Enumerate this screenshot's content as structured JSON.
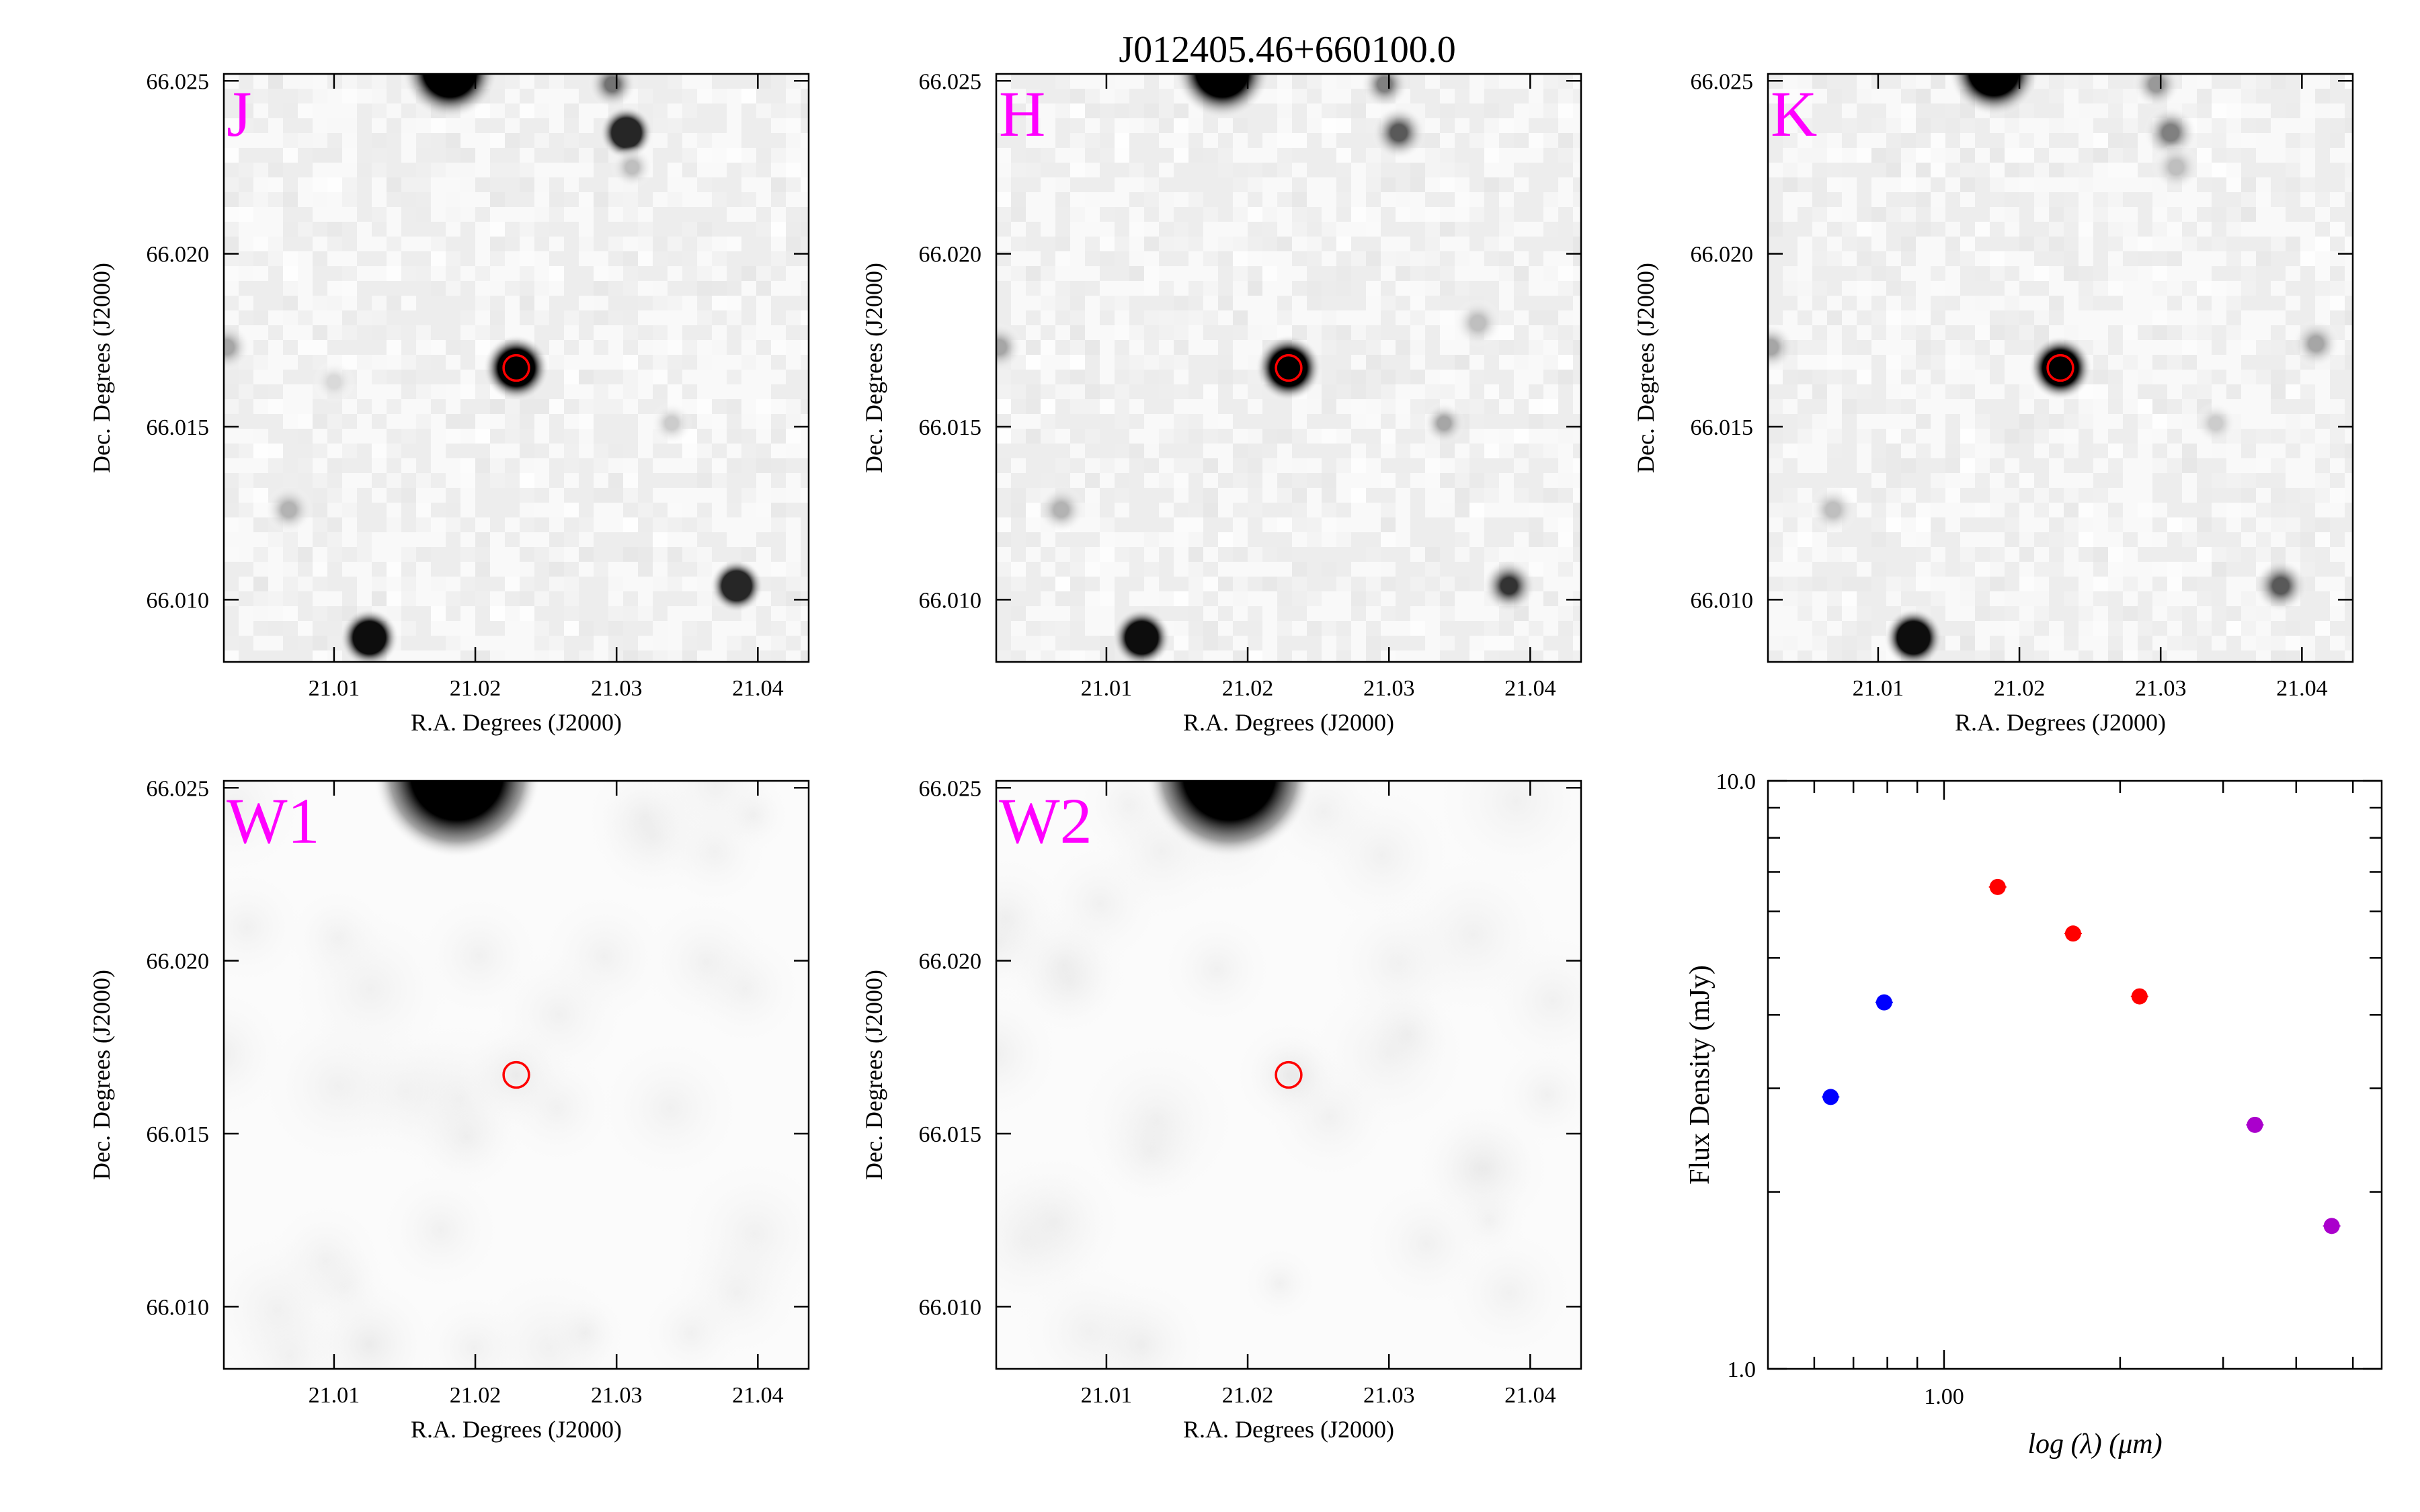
{
  "figure": {
    "title": "J012405.46+660100.0"
  },
  "panels": [
    {
      "band": "J",
      "style": "nir",
      "stars": [
        {
          "ra": 21.0182,
          "dec": 66.0253,
          "strength": 1.0,
          "size": 0.9
        },
        {
          "ra": 21.0297,
          "dec": 66.0249,
          "strength": 0.55,
          "size": 0.45
        },
        {
          "ra": 21.0307,
          "dec": 66.0235,
          "strength": 0.85,
          "size": 0.5
        },
        {
          "ra": 21.0311,
          "dec": 66.0225,
          "strength": 0.25,
          "size": 0.4
        },
        {
          "ra": 21.0229,
          "dec": 66.0167,
          "strength": 1.0,
          "size": 0.62
        },
        {
          "ra": 21.0125,
          "dec": 66.0089,
          "strength": 0.95,
          "size": 0.55
        },
        {
          "ra": 21.0385,
          "dec": 66.0104,
          "strength": 0.85,
          "size": 0.5
        },
        {
          "ra": 21.0068,
          "dec": 66.0126,
          "strength": 0.3,
          "size": 0.45
        },
        {
          "ra": 21.0339,
          "dec": 66.0151,
          "strength": 0.2,
          "size": 0.4
        },
        {
          "ra": 21.0024,
          "dec": 66.0173,
          "strength": 0.35,
          "size": 0.45
        },
        {
          "ra": 21.01,
          "dec": 66.0163,
          "strength": 0.15,
          "size": 0.4
        }
      ]
    },
    {
      "band": "H",
      "style": "nir",
      "stars": [
        {
          "ra": 21.0182,
          "dec": 66.0253,
          "strength": 1.0,
          "size": 0.9
        },
        {
          "ra": 21.0297,
          "dec": 66.0249,
          "strength": 0.5,
          "size": 0.45
        },
        {
          "ra": 21.0307,
          "dec": 66.0235,
          "strength": 0.65,
          "size": 0.5
        },
        {
          "ra": 21.0229,
          "dec": 66.0167,
          "strength": 1.0,
          "size": 0.62
        },
        {
          "ra": 21.0125,
          "dec": 66.0089,
          "strength": 0.95,
          "size": 0.55
        },
        {
          "ra": 21.0385,
          "dec": 66.0104,
          "strength": 0.8,
          "size": 0.5
        },
        {
          "ra": 21.0068,
          "dec": 66.0126,
          "strength": 0.3,
          "size": 0.45
        },
        {
          "ra": 21.0339,
          "dec": 66.0151,
          "strength": 0.35,
          "size": 0.4
        },
        {
          "ra": 21.0363,
          "dec": 66.018,
          "strength": 0.25,
          "size": 0.45
        },
        {
          "ra": 21.0024,
          "dec": 66.0173,
          "strength": 0.35,
          "size": 0.45
        }
      ]
    },
    {
      "band": "K",
      "style": "nir",
      "stars": [
        {
          "ra": 21.0182,
          "dec": 66.0253,
          "strength": 1.0,
          "size": 0.85
        },
        {
          "ra": 21.0297,
          "dec": 66.0249,
          "strength": 0.4,
          "size": 0.45
        },
        {
          "ra": 21.0307,
          "dec": 66.0235,
          "strength": 0.5,
          "size": 0.5
        },
        {
          "ra": 21.0311,
          "dec": 66.0225,
          "strength": 0.25,
          "size": 0.45
        },
        {
          "ra": 21.0229,
          "dec": 66.0167,
          "strength": 1.0,
          "size": 0.6
        },
        {
          "ra": 21.0125,
          "dec": 66.0089,
          "strength": 0.95,
          "size": 0.55
        },
        {
          "ra": 21.0385,
          "dec": 66.0104,
          "strength": 0.65,
          "size": 0.5
        },
        {
          "ra": 21.0068,
          "dec": 66.0126,
          "strength": 0.25,
          "size": 0.45
        },
        {
          "ra": 21.0339,
          "dec": 66.0151,
          "strength": 0.2,
          "size": 0.4
        },
        {
          "ra": 21.041,
          "dec": 66.0174,
          "strength": 0.35,
          "size": 0.45
        },
        {
          "ra": 21.0024,
          "dec": 66.0173,
          "strength": 0.35,
          "size": 0.45
        }
      ]
    },
    {
      "band": "W1",
      "style": "wise",
      "stars": [
        {
          "ra": 21.0187,
          "dec": 66.0254,
          "strength": 1.0,
          "size": 1.0
        },
        {
          "ra": 21.0229,
          "dec": 66.0167,
          "strength": 0.12,
          "size": 1.0
        },
        {
          "ra": 21.0125,
          "dec": 66.0089,
          "strength": 0.12,
          "size": 1.2
        },
        {
          "ra": 21.0385,
          "dec": 66.0104,
          "strength": 0.08,
          "size": 1.2
        },
        {
          "ra": 21.002,
          "dec": 66.0173,
          "strength": 0.1,
          "size": 1.2
        }
      ]
    },
    {
      "band": "W2",
      "style": "wise",
      "stars": [
        {
          "ra": 21.0187,
          "dec": 66.0254,
          "strength": 1.0,
          "size": 1.0
        },
        {
          "ra": 21.0229,
          "dec": 66.0167,
          "strength": 0.1,
          "size": 1.0
        },
        {
          "ra": 21.0125,
          "dec": 66.0089,
          "strength": 0.1,
          "size": 1.2
        },
        {
          "ra": 21.0385,
          "dec": 66.0104,
          "strength": 0.08,
          "size": 1.2
        },
        {
          "ra": 21.002,
          "dec": 66.0173,
          "strength": 0.1,
          "size": 1.2
        }
      ]
    }
  ],
  "image_axes": {
    "xlabel": "R.A. Degrees (J2000)",
    "ylabel": "Dec. Degrees (J2000)",
    "xlim": [
      21.0022,
      21.0436
    ],
    "ylim": [
      66.0082,
      66.0252
    ],
    "x_ticks": [
      21.01,
      21.02,
      21.03,
      21.04
    ],
    "x_tick_labels": [
      "21.01",
      "21.02",
      "21.03",
      "21.04"
    ],
    "y_ticks": [
      66.01,
      66.015,
      66.02,
      66.025
    ],
    "y_tick_labels": [
      "66.010",
      "66.015",
      "66.020",
      "66.025"
    ],
    "target": {
      "ra": 21.0229,
      "dec": 66.0167,
      "radius_deg": 0.0009
    },
    "circle_color": "#ff0000"
  },
  "chart_data": {
    "type": "scatter",
    "xlabel": "log (λ) (μm)",
    "ylabel": "Flux Density (mJy)",
    "xscale": "log",
    "yscale": "log",
    "xlim": [
      0.5,
      5.6
    ],
    "ylim": [
      1.0,
      10.0
    ],
    "x_tick_labels": [
      "1.00"
    ],
    "y_tick_labels": [
      "1.0",
      "10.0"
    ],
    "series": [
      {
        "color": "#0000ff",
        "x": [
          0.64,
          0.79
        ],
        "y": [
          2.9,
          4.2
        ]
      },
      {
        "color": "#ff0000",
        "x": [
          1.235,
          1.662,
          2.159
        ],
        "y": [
          6.6,
          5.5,
          4.3
        ]
      },
      {
        "color": "#aa00cc",
        "x": [
          3.4,
          4.6
        ],
        "y": [
          2.6,
          1.75
        ]
      }
    ]
  }
}
